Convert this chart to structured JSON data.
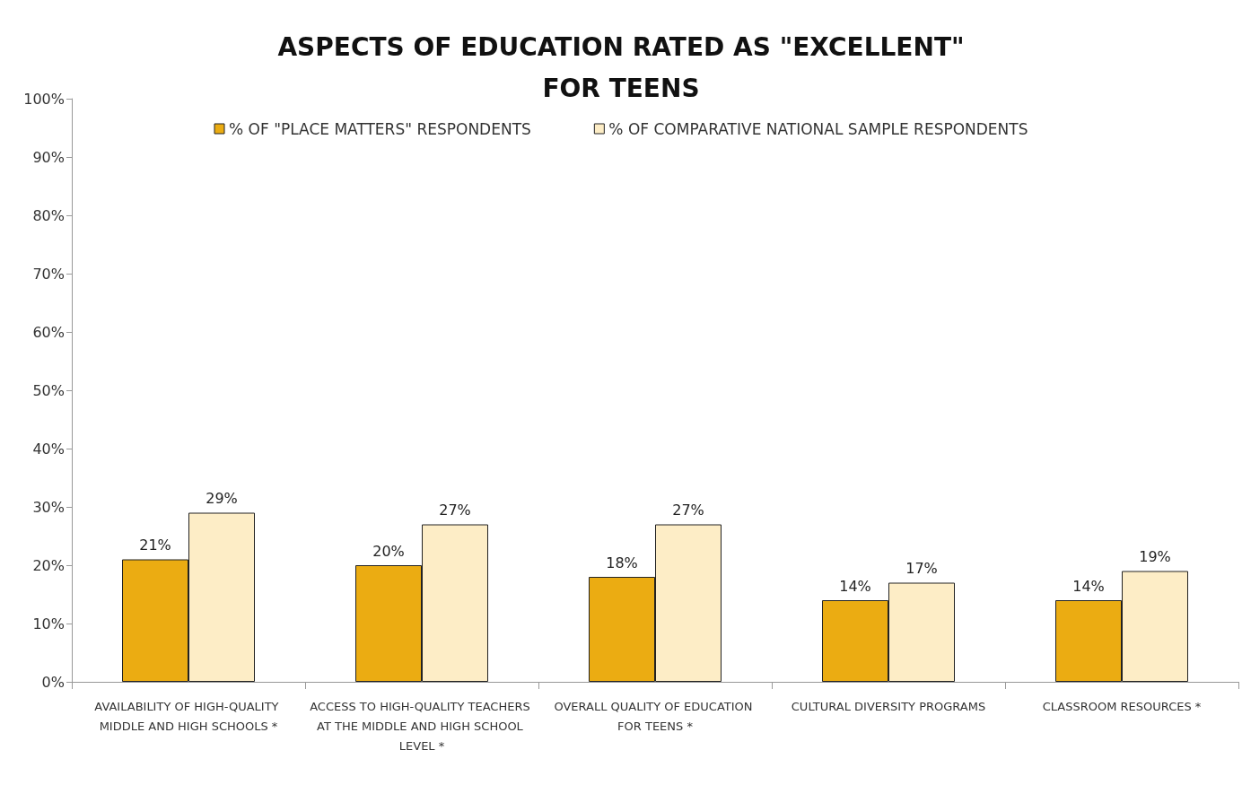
{
  "chart_data": {
    "type": "bar",
    "title": "ASPECTS OF EDUCATION RATED AS \"EXCELLENT\"\nFOR TEENS",
    "categories": [
      "AVAILABILITY OF HIGH-QUALITY MIDDLE AND HIGH SCHOOLS *",
      "ACCESS TO HIGH-QUALITY TEACHERS AT THE MIDDLE AND HIGH SCHOOL LEVEL *",
      "OVERALL QUALITY OF EDUCATION FOR TEENS *",
      "CULTURAL DIVERSITY PROGRAMS",
      "CLASSROOM RESOURCES *"
    ],
    "series": [
      {
        "name": "% OF \"PLACE MATTERS\" RESPONDENTS",
        "color": "#ebac12",
        "values": [
          21,
          20,
          18,
          14,
          14
        ],
        "value_labels": [
          "21%",
          "20%",
          "18%",
          "14%",
          "14%"
        ]
      },
      {
        "name": "% OF COMPARATIVE NATIONAL SAMPLE RESPONDENTS",
        "color": "#fdedc6",
        "values": [
          29,
          27,
          27,
          17,
          19
        ],
        "value_labels": [
          "29%",
          "27%",
          "27%",
          "17%",
          "19%"
        ]
      }
    ],
    "ylim": [
      0,
      100
    ],
    "yticks": [
      {
        "value": 0,
        "label": "0%"
      },
      {
        "value": 10,
        "label": "10%"
      },
      {
        "value": 20,
        "label": "20%"
      },
      {
        "value": 30,
        "label": "30%"
      },
      {
        "value": 40,
        "label": "40%"
      },
      {
        "value": 50,
        "label": "50%"
      },
      {
        "value": 60,
        "label": "60%"
      },
      {
        "value": 70,
        "label": "70%"
      },
      {
        "value": 80,
        "label": "80%"
      },
      {
        "value": 90,
        "label": "90%"
      },
      {
        "value": 100,
        "label": "100%"
      }
    ],
    "grid": false,
    "legend": "top"
  }
}
